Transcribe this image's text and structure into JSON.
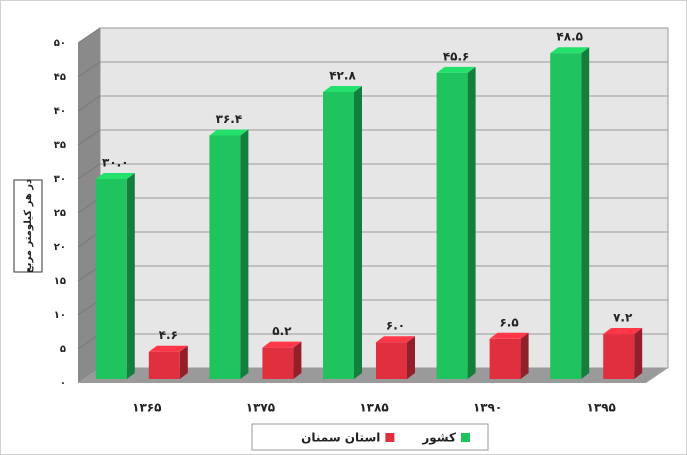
{
  "chart_data": {
    "type": "bar",
    "y_label": "در هر کیلومتر مربع",
    "categories": [
      "۱۳۶۵",
      "۱۳۷۵",
      "۱۳۸۵",
      "۱۳۹۰",
      "۱۳۹۵"
    ],
    "series": [
      {
        "name": "کشور",
        "color": "#1fc45e",
        "values": [
          30.0,
          36.4,
          42.8,
          45.6,
          48.5
        ],
        "value_labels": [
          "۳۰.۰",
          "۳۶.۴",
          "۴۲.۸",
          "۴۵.۶",
          "۴۸.۵"
        ]
      },
      {
        "name": "استان سمنان",
        "color": "#e0303f",
        "values": [
          4.6,
          5.2,
          6.0,
          6.5,
          7.2
        ],
        "value_labels": [
          "۴.۶",
          "۵.۲",
          "۶.۰",
          "۶.۵",
          "۷.۲"
        ]
      }
    ],
    "ylim": [
      0,
      50
    ],
    "yticks": [
      {
        "value": 0,
        "label": "۰"
      },
      {
        "value": 5,
        "label": "۵"
      },
      {
        "value": 10,
        "label": "۱۰"
      },
      {
        "value": 15,
        "label": "۱۵"
      },
      {
        "value": 20,
        "label": "۲۰"
      },
      {
        "value": 25,
        "label": "۲۵"
      },
      {
        "value": 30,
        "label": "۳۰"
      },
      {
        "value": 35,
        "label": "۳۵"
      },
      {
        "value": 40,
        "label": "۴۰"
      },
      {
        "value": 45,
        "label": "۴۵"
      },
      {
        "value": 50,
        "label": "۵۰"
      }
    ],
    "grid": true,
    "legend": "bottom"
  }
}
